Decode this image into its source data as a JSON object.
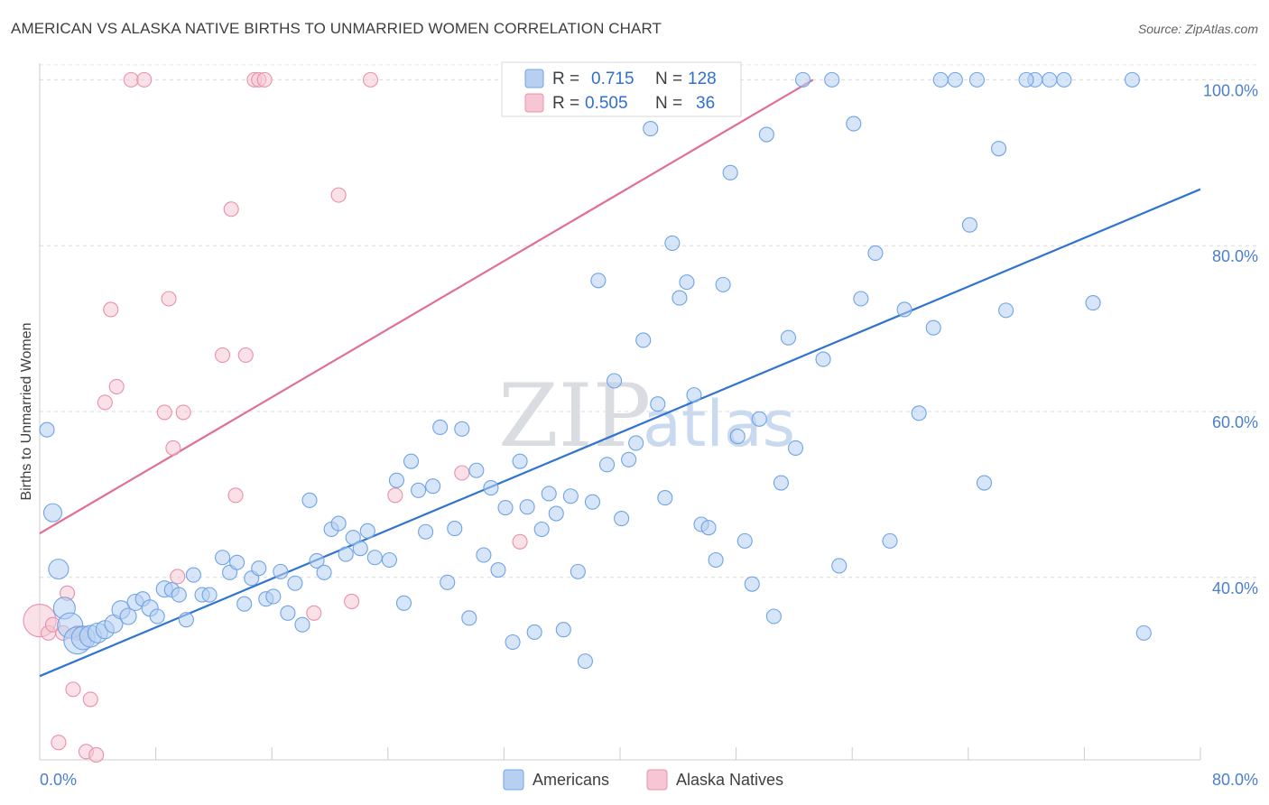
{
  "title": "AMERICAN VS ALASKA NATIVE BIRTHS TO UNMARRIED WOMEN CORRELATION CHART",
  "source": "Source: ZipAtlas.com",
  "watermark": {
    "zip": "ZIP",
    "atlas": "atlas"
  },
  "chart_data": {
    "type": "scatter",
    "title": "AMERICAN VS ALASKA NATIVE BIRTHS TO UNMARRIED WOMEN CORRELATION CHART",
    "xlabel": "",
    "ylabel": "Births to Unmarried Women",
    "xlim": [
      0,
      80
    ],
    "ylim": [
      18,
      102
    ],
    "x_tick_labels": [
      "0.0%",
      "80.0%"
    ],
    "y_ticks": [
      40,
      60,
      80,
      100
    ],
    "y_tick_labels": [
      "40.0%",
      "60.0%",
      "80.0%",
      "100.0%"
    ],
    "grid": true,
    "legend_position": "top-center",
    "series": [
      {
        "name": "Americans",
        "color": "#6fa3e6",
        "fill": "#b7d0f2",
        "line_color": "#2f74d0",
        "R": "0.715",
        "N": "128",
        "trend": {
          "x": [
            0,
            80
          ],
          "y": [
            28.1,
            86.8
          ]
        },
        "points": [
          [
            0.5,
            57.8,
            8
          ],
          [
            0.9,
            47.8,
            10
          ],
          [
            1.3,
            41.0,
            11
          ],
          [
            1.7,
            36.3,
            12
          ],
          [
            2.1,
            34.2,
            14
          ],
          [
            2.6,
            32.4,
            15
          ],
          [
            3.0,
            32.7,
            13
          ],
          [
            3.5,
            32.9,
            12
          ],
          [
            4.0,
            33.3,
            11
          ],
          [
            4.5,
            33.7,
            10
          ],
          [
            5.1,
            34.4,
            10
          ],
          [
            5.6,
            36.1,
            10
          ],
          [
            6.1,
            35.3,
            9
          ],
          [
            6.6,
            37.0,
            9
          ],
          [
            7.1,
            37.4,
            8
          ],
          [
            7.6,
            36.3,
            9
          ],
          [
            8.1,
            35.3,
            8
          ],
          [
            8.6,
            38.6,
            9
          ],
          [
            9.1,
            38.5,
            8
          ],
          [
            9.6,
            37.9,
            8
          ],
          [
            10.1,
            34.9,
            8
          ],
          [
            10.6,
            40.3,
            8
          ],
          [
            11.2,
            37.9,
            8
          ],
          [
            11.7,
            37.9,
            8
          ],
          [
            12.6,
            42.4,
            8
          ],
          [
            13.1,
            40.6,
            8
          ],
          [
            13.6,
            41.8,
            8
          ],
          [
            14.1,
            36.8,
            8
          ],
          [
            14.6,
            39.9,
            8
          ],
          [
            15.1,
            41.1,
            8
          ],
          [
            15.6,
            37.4,
            8
          ],
          [
            16.1,
            37.7,
            8
          ],
          [
            16.6,
            40.7,
            8
          ],
          [
            17.1,
            35.7,
            8
          ],
          [
            17.6,
            39.3,
            8
          ],
          [
            18.1,
            34.3,
            8
          ],
          [
            18.6,
            49.3,
            8
          ],
          [
            19.1,
            42.0,
            8
          ],
          [
            19.6,
            40.6,
            8
          ],
          [
            20.1,
            45.8,
            8
          ],
          [
            20.6,
            46.5,
            8
          ],
          [
            21.1,
            42.8,
            8
          ],
          [
            21.6,
            44.8,
            8
          ],
          [
            22.1,
            43.5,
            8
          ],
          [
            22.6,
            45.6,
            8
          ],
          [
            23.1,
            42.4,
            8
          ],
          [
            24.1,
            42.1,
            8
          ],
          [
            24.6,
            51.7,
            8
          ],
          [
            25.1,
            36.9,
            8
          ],
          [
            25.6,
            54.0,
            8
          ],
          [
            26.1,
            50.5,
            8
          ],
          [
            26.6,
            45.5,
            8
          ],
          [
            27.1,
            51.0,
            8
          ],
          [
            27.6,
            58.1,
            8
          ],
          [
            28.1,
            39.4,
            8
          ],
          [
            28.6,
            45.9,
            8
          ],
          [
            29.1,
            57.9,
            8
          ],
          [
            29.6,
            35.1,
            8
          ],
          [
            30.1,
            52.9,
            8
          ],
          [
            30.6,
            42.7,
            8
          ],
          [
            31.1,
            50.8,
            8
          ],
          [
            31.6,
            40.9,
            8
          ],
          [
            32.1,
            48.4,
            8
          ],
          [
            32.6,
            32.2,
            8
          ],
          [
            33.1,
            54.0,
            8
          ],
          [
            33.6,
            48.5,
            8
          ],
          [
            34.1,
            33.4,
            8
          ],
          [
            34.6,
            45.8,
            8
          ],
          [
            35.1,
            50.1,
            8
          ],
          [
            35.6,
            47.7,
            8
          ],
          [
            36.1,
            33.7,
            8
          ],
          [
            36.6,
            49.8,
            8
          ],
          [
            37.1,
            40.7,
            8
          ],
          [
            37.6,
            29.9,
            8
          ],
          [
            38.1,
            49.1,
            8
          ],
          [
            38.5,
            75.8,
            8
          ],
          [
            39.1,
            53.6,
            8
          ],
          [
            39.6,
            63.7,
            8
          ],
          [
            40.1,
            47.1,
            8
          ],
          [
            40.6,
            54.2,
            8
          ],
          [
            41.1,
            56.2,
            8
          ],
          [
            41.6,
            68.6,
            8
          ],
          [
            42.1,
            94.1,
            8
          ],
          [
            42.6,
            60.9,
            8
          ],
          [
            43.1,
            49.6,
            8
          ],
          [
            43.6,
            80.3,
            8
          ],
          [
            44.1,
            73.7,
            8
          ],
          [
            44.6,
            75.6,
            8
          ],
          [
            45.1,
            62.0,
            8
          ],
          [
            45.6,
            46.4,
            8
          ],
          [
            46.1,
            46.0,
            8
          ],
          [
            46.6,
            42.1,
            8
          ],
          [
            47.1,
            75.3,
            8
          ],
          [
            47.6,
            88.8,
            8
          ],
          [
            48.1,
            57.0,
            8
          ],
          [
            48.6,
            44.4,
            8
          ],
          [
            49.1,
            39.2,
            8
          ],
          [
            49.6,
            59.1,
            8
          ],
          [
            50.1,
            93.4,
            8
          ],
          [
            50.6,
            35.3,
            8
          ],
          [
            51.1,
            51.4,
            8
          ],
          [
            51.6,
            68.9,
            8
          ],
          [
            52.1,
            55.6,
            8
          ],
          [
            52.6,
            100.0,
            8
          ],
          [
            54.0,
            66.3,
            8
          ],
          [
            54.6,
            100.0,
            8
          ],
          [
            55.1,
            41.4,
            8
          ],
          [
            56.1,
            94.7,
            8
          ],
          [
            56.6,
            73.6,
            8
          ],
          [
            57.6,
            79.1,
            8
          ],
          [
            58.6,
            44.4,
            8
          ],
          [
            59.6,
            72.3,
            8
          ],
          [
            60.6,
            59.8,
            8
          ],
          [
            61.6,
            70.1,
            8
          ],
          [
            62.1,
            100.0,
            8
          ],
          [
            63.1,
            100.0,
            8
          ],
          [
            64.1,
            82.5,
            8
          ],
          [
            64.6,
            100.0,
            8
          ],
          [
            65.1,
            51.4,
            8
          ],
          [
            66.1,
            91.7,
            8
          ],
          [
            66.6,
            72.2,
            8
          ],
          [
            68.6,
            100.0,
            8
          ],
          [
            69.6,
            100.0,
            8
          ],
          [
            70.6,
            100.0,
            8
          ],
          [
            72.6,
            73.1,
            8
          ],
          [
            75.3,
            100.0,
            8
          ],
          [
            76.1,
            33.3,
            8
          ],
          [
            68.0,
            100.0,
            8
          ]
        ]
      },
      {
        "name": "Alaska Natives",
        "color": "#e890aa",
        "fill": "#f6c6d4",
        "line_color": "#e06f91",
        "R": "0.505",
        "N": "36",
        "trend": {
          "x": [
            0,
            53.3
          ],
          "y": [
            45.3,
            100.0
          ]
        },
        "points": [
          [
            0.0,
            34.8,
            18
          ],
          [
            0.6,
            33.3,
            8
          ],
          [
            0.9,
            34.3,
            8
          ],
          [
            1.3,
            20.1,
            8
          ],
          [
            1.6,
            33.3,
            8
          ],
          [
            1.9,
            38.1,
            8
          ],
          [
            2.3,
            26.5,
            8
          ],
          [
            2.6,
            33.3,
            8
          ],
          [
            2.9,
            33.3,
            8
          ],
          [
            3.2,
            19.0,
            8
          ],
          [
            3.5,
            25.3,
            8
          ],
          [
            3.9,
            18.6,
            8
          ],
          [
            4.5,
            61.1,
            8
          ],
          [
            4.9,
            72.3,
            8
          ],
          [
            5.3,
            63.0,
            8
          ],
          [
            6.3,
            100.0,
            8
          ],
          [
            7.2,
            100.0,
            8
          ],
          [
            8.6,
            59.9,
            8
          ],
          [
            8.9,
            73.6,
            8
          ],
          [
            9.2,
            55.6,
            8
          ],
          [
            9.5,
            40.1,
            8
          ],
          [
            9.9,
            59.9,
            8
          ],
          [
            12.6,
            66.8,
            8
          ],
          [
            13.2,
            84.4,
            8
          ],
          [
            13.5,
            49.9,
            8
          ],
          [
            14.2,
            66.8,
            8
          ],
          [
            14.8,
            100.0,
            8
          ],
          [
            15.1,
            100.0,
            8
          ],
          [
            15.5,
            100.0,
            8
          ],
          [
            18.9,
            35.7,
            8
          ],
          [
            20.6,
            86.1,
            8
          ],
          [
            21.5,
            37.1,
            8
          ],
          [
            22.8,
            100.0,
            8
          ],
          [
            24.5,
            49.9,
            8
          ],
          [
            29.1,
            52.6,
            8
          ],
          [
            33.1,
            44.3,
            8
          ]
        ]
      }
    ]
  },
  "legend": {
    "rows": [
      {
        "r_label": "R =",
        "r_value": "0.715",
        "n_label": "N =",
        "n_value": "128"
      },
      {
        "r_label": "R =",
        "r_value": "0.505",
        "n_label": "N =",
        "n_value": "36"
      }
    ]
  },
  "bottom_legend": [
    "Americans",
    "Alaska Natives"
  ]
}
